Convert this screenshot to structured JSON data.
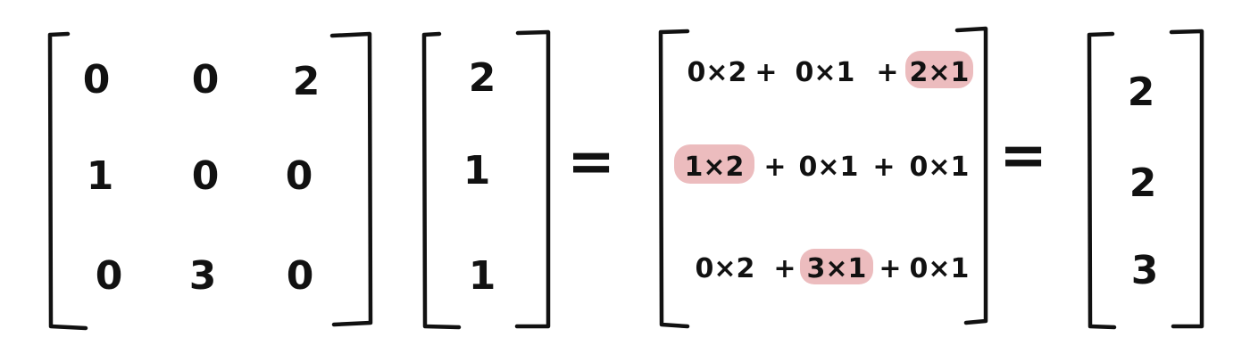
{
  "matrix_a": {
    "rows": [
      [
        "0",
        "0",
        "2"
      ],
      [
        "1",
        "0",
        "0"
      ],
      [
        "0",
        "3",
        "0"
      ]
    ]
  },
  "vector_x": [
    "2",
    "1",
    "1"
  ],
  "equals_sign": "=",
  "expansion": {
    "rows": [
      {
        "terms": [
          "0×2",
          "0×1",
          "2×1"
        ],
        "highlighted_index": 2
      },
      {
        "terms": [
          "1×2",
          "0×1",
          "0×1"
        ],
        "highlighted_index": 0
      },
      {
        "terms": [
          "0×2",
          "3×1",
          "0×1"
        ],
        "highlighted_index": 1
      }
    ],
    "plus": "+",
    "highlight_color": "#ecbcbe"
  },
  "result_vector": [
    "2",
    "2",
    "3"
  ]
}
